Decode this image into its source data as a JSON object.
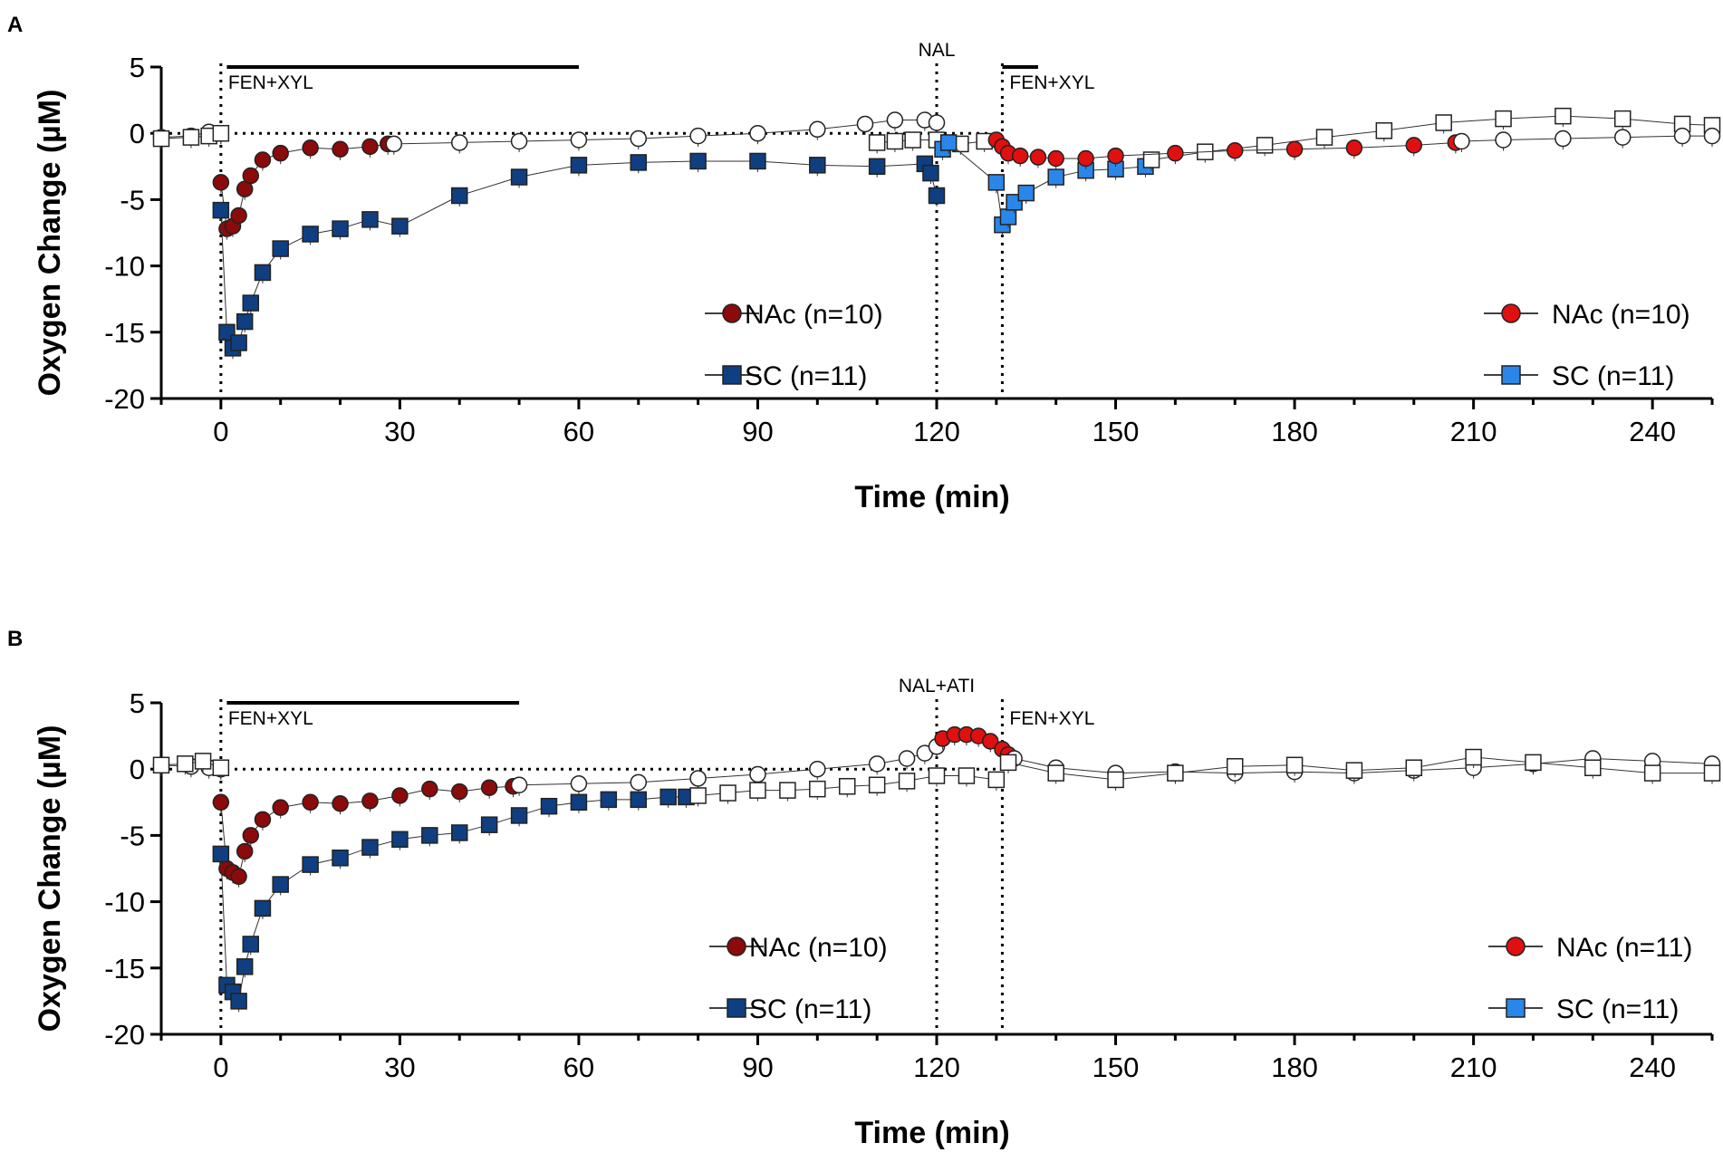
{
  "chart_data": [
    {
      "type": "scatter",
      "panel_label": "A",
      "xlabel": "Time (min)",
      "ylabel": "Oxygen Change (µM)",
      "xlim": [
        -10,
        250
      ],
      "ylim": [
        -20,
        5
      ],
      "xticks": [
        "0",
        "30",
        "60",
        "90",
        "120",
        "150",
        "180",
        "210",
        "240"
      ],
      "yticks": [
        "5",
        "0",
        "-5",
        "-10",
        "-15",
        "-20"
      ],
      "annotations": [
        {
          "text": "FEN+XYL",
          "x": 0.3,
          "bar": [
            1,
            60
          ]
        },
        {
          "text": "NAL",
          "x": 120,
          "line": true
        },
        {
          "text": "FEN+XYL",
          "x": 130.5,
          "bar": [
            131,
            137
          ],
          "line": true
        }
      ],
      "zero_line": true,
      "legend_left": [
        {
          "label": "NAc (n=10)",
          "color": "#8B0A0A",
          "marker": "circle"
        },
        {
          "label": "SC (n=11)",
          "color": "#0F3F80",
          "marker": "square"
        }
      ],
      "legend_right": [
        {
          "label": "NAc (n=10)",
          "color": "#E01010",
          "marker": "circle"
        },
        {
          "label": "SC (n=11)",
          "color": "#2A86E8",
          "marker": "square"
        }
      ],
      "series": [
        {
          "name": "NAc baseline",
          "marker": "circle",
          "color": "#ffffff",
          "x": [
            -10,
            -5,
            -2,
            0
          ],
          "y": [
            -0.3,
            -0.2,
            0.1,
            0
          ]
        },
        {
          "name": "NAc (n=10) FEN+XYL",
          "marker": "circle",
          "color": "#8B0A0A",
          "x": [
            0,
            1,
            2,
            3,
            4,
            5,
            7,
            10,
            15,
            20,
            25,
            28
          ],
          "y": [
            -3.7,
            -7.2,
            -7,
            -6.2,
            -4.2,
            -3.2,
            -2,
            -1.5,
            -1.1,
            -1.2,
            -1,
            -0.8
          ]
        },
        {
          "name": "NAc post-FEN (white)",
          "marker": "circle",
          "color": "#ffffff",
          "x": [
            29,
            40,
            50,
            60,
            70,
            80,
            90,
            100,
            108,
            113,
            118,
            120
          ],
          "y": [
            -0.8,
            -0.7,
            -0.6,
            -0.5,
            -0.4,
            -0.2,
            0,
            0.3,
            0.7,
            1,
            1,
            0.8
          ]
        },
        {
          "name": "SC baseline",
          "marker": "square",
          "color": "#ffffff",
          "x": [
            -10,
            -5,
            -2,
            0
          ],
          "y": [
            -0.4,
            -0.3,
            -0.2,
            0
          ]
        },
        {
          "name": "SC (n=11) FEN+XYL",
          "marker": "square",
          "color": "#0F3F80",
          "x": [
            0,
            1,
            2,
            3,
            4,
            5,
            7,
            10,
            15,
            20,
            25,
            30,
            40,
            50,
            60,
            70,
            80,
            90,
            100,
            110,
            118,
            119,
            120
          ],
          "y": [
            -5.8,
            -15,
            -16.2,
            -15.8,
            -14.2,
            -12.8,
            -10.5,
            -8.7,
            -7.6,
            -7.2,
            -6.5,
            -7,
            -4.7,
            -3.3,
            -2.4,
            -2.2,
            -2.1,
            -2.1,
            -2.4,
            -2.5,
            -2.3,
            -3,
            -4.7
          ]
        },
        {
          "name": "SC NAL (white)",
          "marker": "square",
          "color": "#ffffff",
          "x": [
            110,
            113,
            116,
            120,
            124,
            128
          ],
          "y": [
            -0.7,
            -0.6,
            -0.5,
            -0.5,
            -0.8,
            -0.6
          ]
        },
        {
          "name": "SC (n=11) light",
          "marker": "square",
          "color": "#2A86E8",
          "x": [
            121,
            122,
            130,
            131,
            132,
            133,
            135,
            140,
            145,
            150,
            155
          ],
          "y": [
            -1.2,
            -0.7,
            -3.7,
            -6.9,
            -6.3,
            -5.2,
            -4.5,
            -3.3,
            -2.8,
            -2.7,
            -2.5
          ]
        },
        {
          "name": "SC late (white)",
          "marker": "square",
          "color": "#ffffff",
          "x": [
            156,
            165,
            175,
            185,
            195,
            205,
            215,
            225,
            235,
            245,
            250
          ],
          "y": [
            -2,
            -1.4,
            -0.9,
            -0.3,
            0.2,
            0.8,
            1.1,
            1.3,
            1.1,
            0.7,
            0.6
          ]
        },
        {
          "name": "NAc (n=10) light",
          "marker": "circle",
          "color": "#E01010",
          "x": [
            130,
            131,
            132,
            134,
            137,
            140,
            145,
            150,
            160,
            170,
            180,
            190,
            200,
            207
          ],
          "y": [
            -0.5,
            -1,
            -1.5,
            -1.7,
            -1.8,
            -1.9,
            -1.9,
            -1.7,
            -1.5,
            -1.3,
            -1.2,
            -1.1,
            -0.9,
            -0.7
          ]
        },
        {
          "name": "NAc late (white)",
          "marker": "circle",
          "color": "#ffffff",
          "x": [
            208,
            215,
            225,
            235,
            245,
            250
          ],
          "y": [
            -0.6,
            -0.5,
            -0.4,
            -0.3,
            -0.2,
            -0.2
          ]
        }
      ]
    },
    {
      "type": "scatter",
      "panel_label": "B",
      "xlabel": "Time (min)",
      "ylabel": "Oxygen Change (µM)",
      "xlim": [
        -10,
        250
      ],
      "ylim": [
        -20,
        5
      ],
      "xticks": [
        "0",
        "30",
        "60",
        "90",
        "120",
        "150",
        "180",
        "210",
        "240"
      ],
      "yticks": [
        "5",
        "0",
        "-5",
        "-10",
        "-15",
        "-20"
      ],
      "annotations": [
        {
          "text": "FEN+XYL",
          "x": 0.3,
          "bar": [
            1,
            50
          ],
          "line": true
        },
        {
          "text": "NAL+ATI",
          "x": 120,
          "line": true
        },
        {
          "text": "FEN+XYL",
          "x": 130.5,
          "line": true
        }
      ],
      "zero_line": true,
      "legend_left": [
        {
          "label": "NAc (n=10)",
          "color": "#8B0A0A",
          "marker": "circle"
        },
        {
          "label": "SC (n=11)",
          "color": "#0F3F80",
          "marker": "square"
        }
      ],
      "legend_right": [
        {
          "label": "NAc (n=11)",
          "color": "#E01010",
          "marker": "circle"
        },
        {
          "label": "SC (n=11)",
          "color": "#2A86E8",
          "marker": "square"
        }
      ],
      "series": [
        {
          "name": "NAc baseline",
          "marker": "circle",
          "color": "#ffffff",
          "x": [
            -10,
            -5,
            -2,
            0
          ],
          "y": [
            0.3,
            0.2,
            0.1,
            0
          ]
        },
        {
          "name": "NAc (n=10) FEN+XYL",
          "marker": "circle",
          "color": "#8B0A0A",
          "x": [
            0,
            1,
            2,
            3,
            4,
            5,
            7,
            10,
            15,
            20,
            25,
            30,
            35,
            40,
            45,
            49
          ],
          "y": [
            -2.5,
            -7.5,
            -7.8,
            -8.1,
            -6.2,
            -5,
            -3.8,
            -2.9,
            -2.5,
            -2.6,
            -2.4,
            -2,
            -1.5,
            -1.7,
            -1.4,
            -1.3
          ]
        },
        {
          "name": "NAc post-FEN (white)",
          "marker": "circle",
          "color": "#ffffff",
          "x": [
            50,
            60,
            70,
            80,
            90,
            100,
            110,
            115,
            118,
            120
          ],
          "y": [
            -1.2,
            -1.1,
            -1,
            -0.7,
            -0.4,
            0,
            0.4,
            0.8,
            1.2,
            1.7
          ]
        },
        {
          "name": "NAc (n=11) light",
          "marker": "circle",
          "color": "#E01010",
          "x": [
            121,
            123,
            125,
            127,
            129,
            131,
            132
          ],
          "y": [
            2.3,
            2.6,
            2.6,
            2.5,
            2.1,
            1.5,
            1.1
          ]
        },
        {
          "name": "NAc late (white)",
          "marker": "circle",
          "color": "#ffffff",
          "x": [
            133,
            140,
            150,
            160,
            170,
            180,
            190,
            200,
            210,
            220,
            230,
            240,
            250
          ],
          "y": [
            0.8,
            0.1,
            -0.3,
            -0.2,
            -0.3,
            -0.2,
            -0.3,
            -0.1,
            0.1,
            0.4,
            0.8,
            0.6,
            0.4
          ]
        },
        {
          "name": "SC baseline",
          "marker": "square",
          "color": "#ffffff",
          "x": [
            -10,
            -6,
            -3,
            0
          ],
          "y": [
            0.3,
            0.4,
            0.6,
            0.1
          ]
        },
        {
          "name": "SC (n=11) FEN+XYL",
          "marker": "square",
          "color": "#0F3F80",
          "x": [
            0,
            1,
            2,
            3,
            4,
            5,
            7,
            10,
            15,
            20,
            25,
            30,
            35,
            40,
            45,
            50,
            55,
            60,
            65,
            70,
            75,
            78
          ],
          "y": [
            -6.4,
            -16.3,
            -16.8,
            -17.5,
            -14.9,
            -13.2,
            -10.5,
            -8.7,
            -7.2,
            -6.7,
            -5.9,
            -5.3,
            -5,
            -4.8,
            -4.2,
            -3.5,
            -2.8,
            -2.5,
            -2.3,
            -2.3,
            -2.1,
            -2.1
          ]
        },
        {
          "name": "SC post-FEN (white)",
          "marker": "square",
          "color": "#ffffff",
          "x": [
            80,
            85,
            90,
            95,
            100,
            105,
            110,
            115,
            120,
            125,
            130
          ],
          "y": [
            -2,
            -1.8,
            -1.6,
            -1.6,
            -1.5,
            -1.3,
            -1.2,
            -0.9,
            -0.5,
            -0.5,
            -0.8
          ]
        },
        {
          "name": "SC late (white)",
          "marker": "square",
          "color": "#ffffff",
          "x": [
            132,
            140,
            150,
            160,
            170,
            180,
            190,
            200,
            210,
            220,
            230,
            240,
            250
          ],
          "y": [
            0.5,
            -0.3,
            -0.8,
            -0.3,
            0.2,
            0.3,
            -0.1,
            0.1,
            0.9,
            0.5,
            0.1,
            -0.3,
            -0.3
          ]
        }
      ]
    }
  ]
}
